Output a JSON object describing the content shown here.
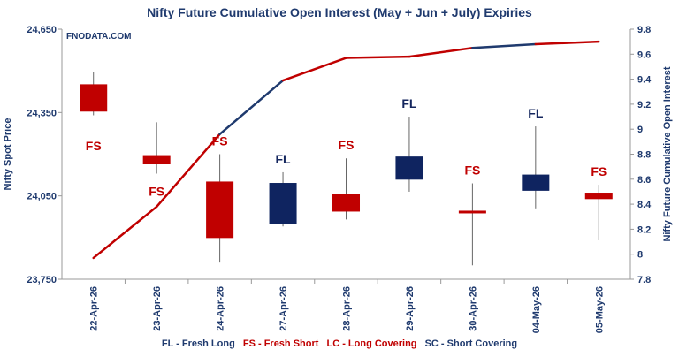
{
  "chart_data": {
    "type": "candlestick-line",
    "title": "Nifty Future Cumulative Open Interest (May + Jun + July) Expiries",
    "watermark": "FNODATA.COM",
    "ylabel_left": "Nifty Spot Price",
    "ylabel_right": "Nifty Future Cumulative Open Interest",
    "ylim_left": [
      23750,
      24650
    ],
    "ylim_right": [
      7.8,
      9.8
    ],
    "left_ticks": [
      "23,750",
      "24,050",
      "24,350",
      "24,650"
    ],
    "right_ticks": [
      "7.8",
      "8",
      "8.2",
      "8.4",
      "8.6",
      "8.8",
      "9",
      "9.2",
      "9.4",
      "9.6",
      "9.8"
    ],
    "categories": [
      "22-Apr-26",
      "23-Apr-26",
      "24-Apr-26",
      "27-Apr-26",
      "28-Apr-26",
      "29-Apr-26",
      "30-Apr-26",
      "04-May-26",
      "05-May-26"
    ],
    "candles": [
      {
        "open": 24450,
        "close": 24355,
        "high": 24495,
        "low": 24340,
        "label": "FS"
      },
      {
        "open": 24195,
        "close": 24165,
        "high": 24315,
        "low": 24130,
        "label": "FS"
      },
      {
        "open": 24100,
        "close": 23900,
        "high": 24200,
        "low": 23810,
        "label": "FS"
      },
      {
        "open": 23950,
        "close": 24095,
        "high": 24135,
        "low": 23940,
        "label": "FL"
      },
      {
        "open": 24055,
        "close": 23995,
        "high": 24185,
        "low": 23965,
        "label": "FS"
      },
      {
        "open": 24110,
        "close": 24190,
        "high": 24335,
        "low": 24065,
        "label": "FL"
      },
      {
        "open": 23990,
        "close": 23995,
        "high": 24095,
        "low": 23800,
        "label": "FS"
      },
      {
        "open": 24070,
        "close": 24125,
        "high": 24300,
        "low": 24005,
        "label": "FL"
      },
      {
        "open": 24060,
        "close": 24040,
        "high": 24090,
        "low": 23890,
        "label": "FS"
      }
    ],
    "oi_series": {
      "name": "Nifty Future Cumulative Open Interest",
      "values": [
        7.97,
        8.38,
        8.96,
        9.39,
        9.57,
        9.58,
        9.65,
        9.68,
        9.7
      ]
    },
    "label_colors": {
      "FS": "#c00000",
      "FL": "#14265e"
    },
    "candle_colors": {
      "FS": "#c00000",
      "FL": "#0f2460"
    },
    "line_color_up": "#c00000",
    "line_color_down": "#1f3a6e"
  },
  "legend": {
    "fl": "FL - Fresh Long",
    "fs": "FS - Fresh Short",
    "lc": "LC - Long Covering",
    "sc": "SC - Short Covering"
  },
  "legend_colors": {
    "fl": "#1f3a6e",
    "fs": "#c00000",
    "lc": "#c00000",
    "sc": "#1f3a6e"
  }
}
